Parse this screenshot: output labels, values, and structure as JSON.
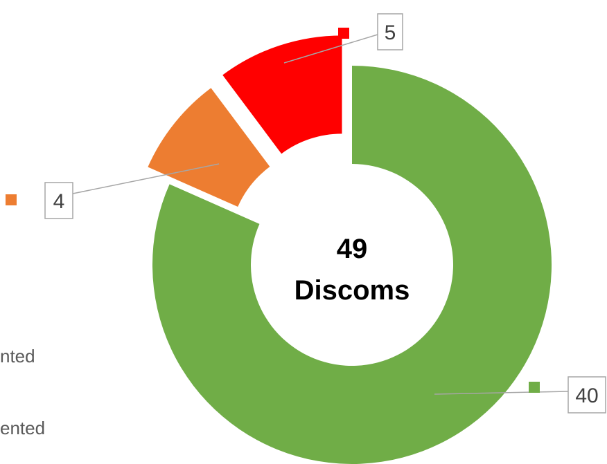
{
  "chart_data": {
    "type": "pie",
    "variant": "doughnut",
    "center_label": [
      "49",
      "Discoms"
    ],
    "slices": [
      {
        "value": 40,
        "label": "40",
        "color": "#70AD47",
        "exploded": false
      },
      {
        "value": 4,
        "label": "4",
        "color": "#ED7D31",
        "exploded": true
      },
      {
        "value": 5,
        "label": "5",
        "color": "#FF0000",
        "exploded": true
      }
    ],
    "total": 49
  },
  "legend_fragments": [
    "nted",
    "ented"
  ],
  "colors": {
    "label_border": "#A6A6A6",
    "leader_line": "#A6A6A6",
    "legend_text": "#595959"
  }
}
